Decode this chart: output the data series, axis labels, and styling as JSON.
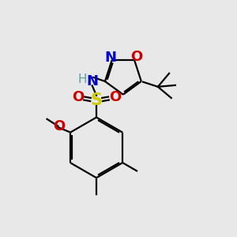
{
  "background_color": "#e8e8e8",
  "bond_color": "#000000",
  "atom_colors": {
    "N": "#0000cc",
    "O": "#cc0000",
    "S": "#cccc00",
    "H": "#5f9ea0",
    "C": "#000000"
  },
  "lw": 1.6,
  "lw_thick": 2.0
}
